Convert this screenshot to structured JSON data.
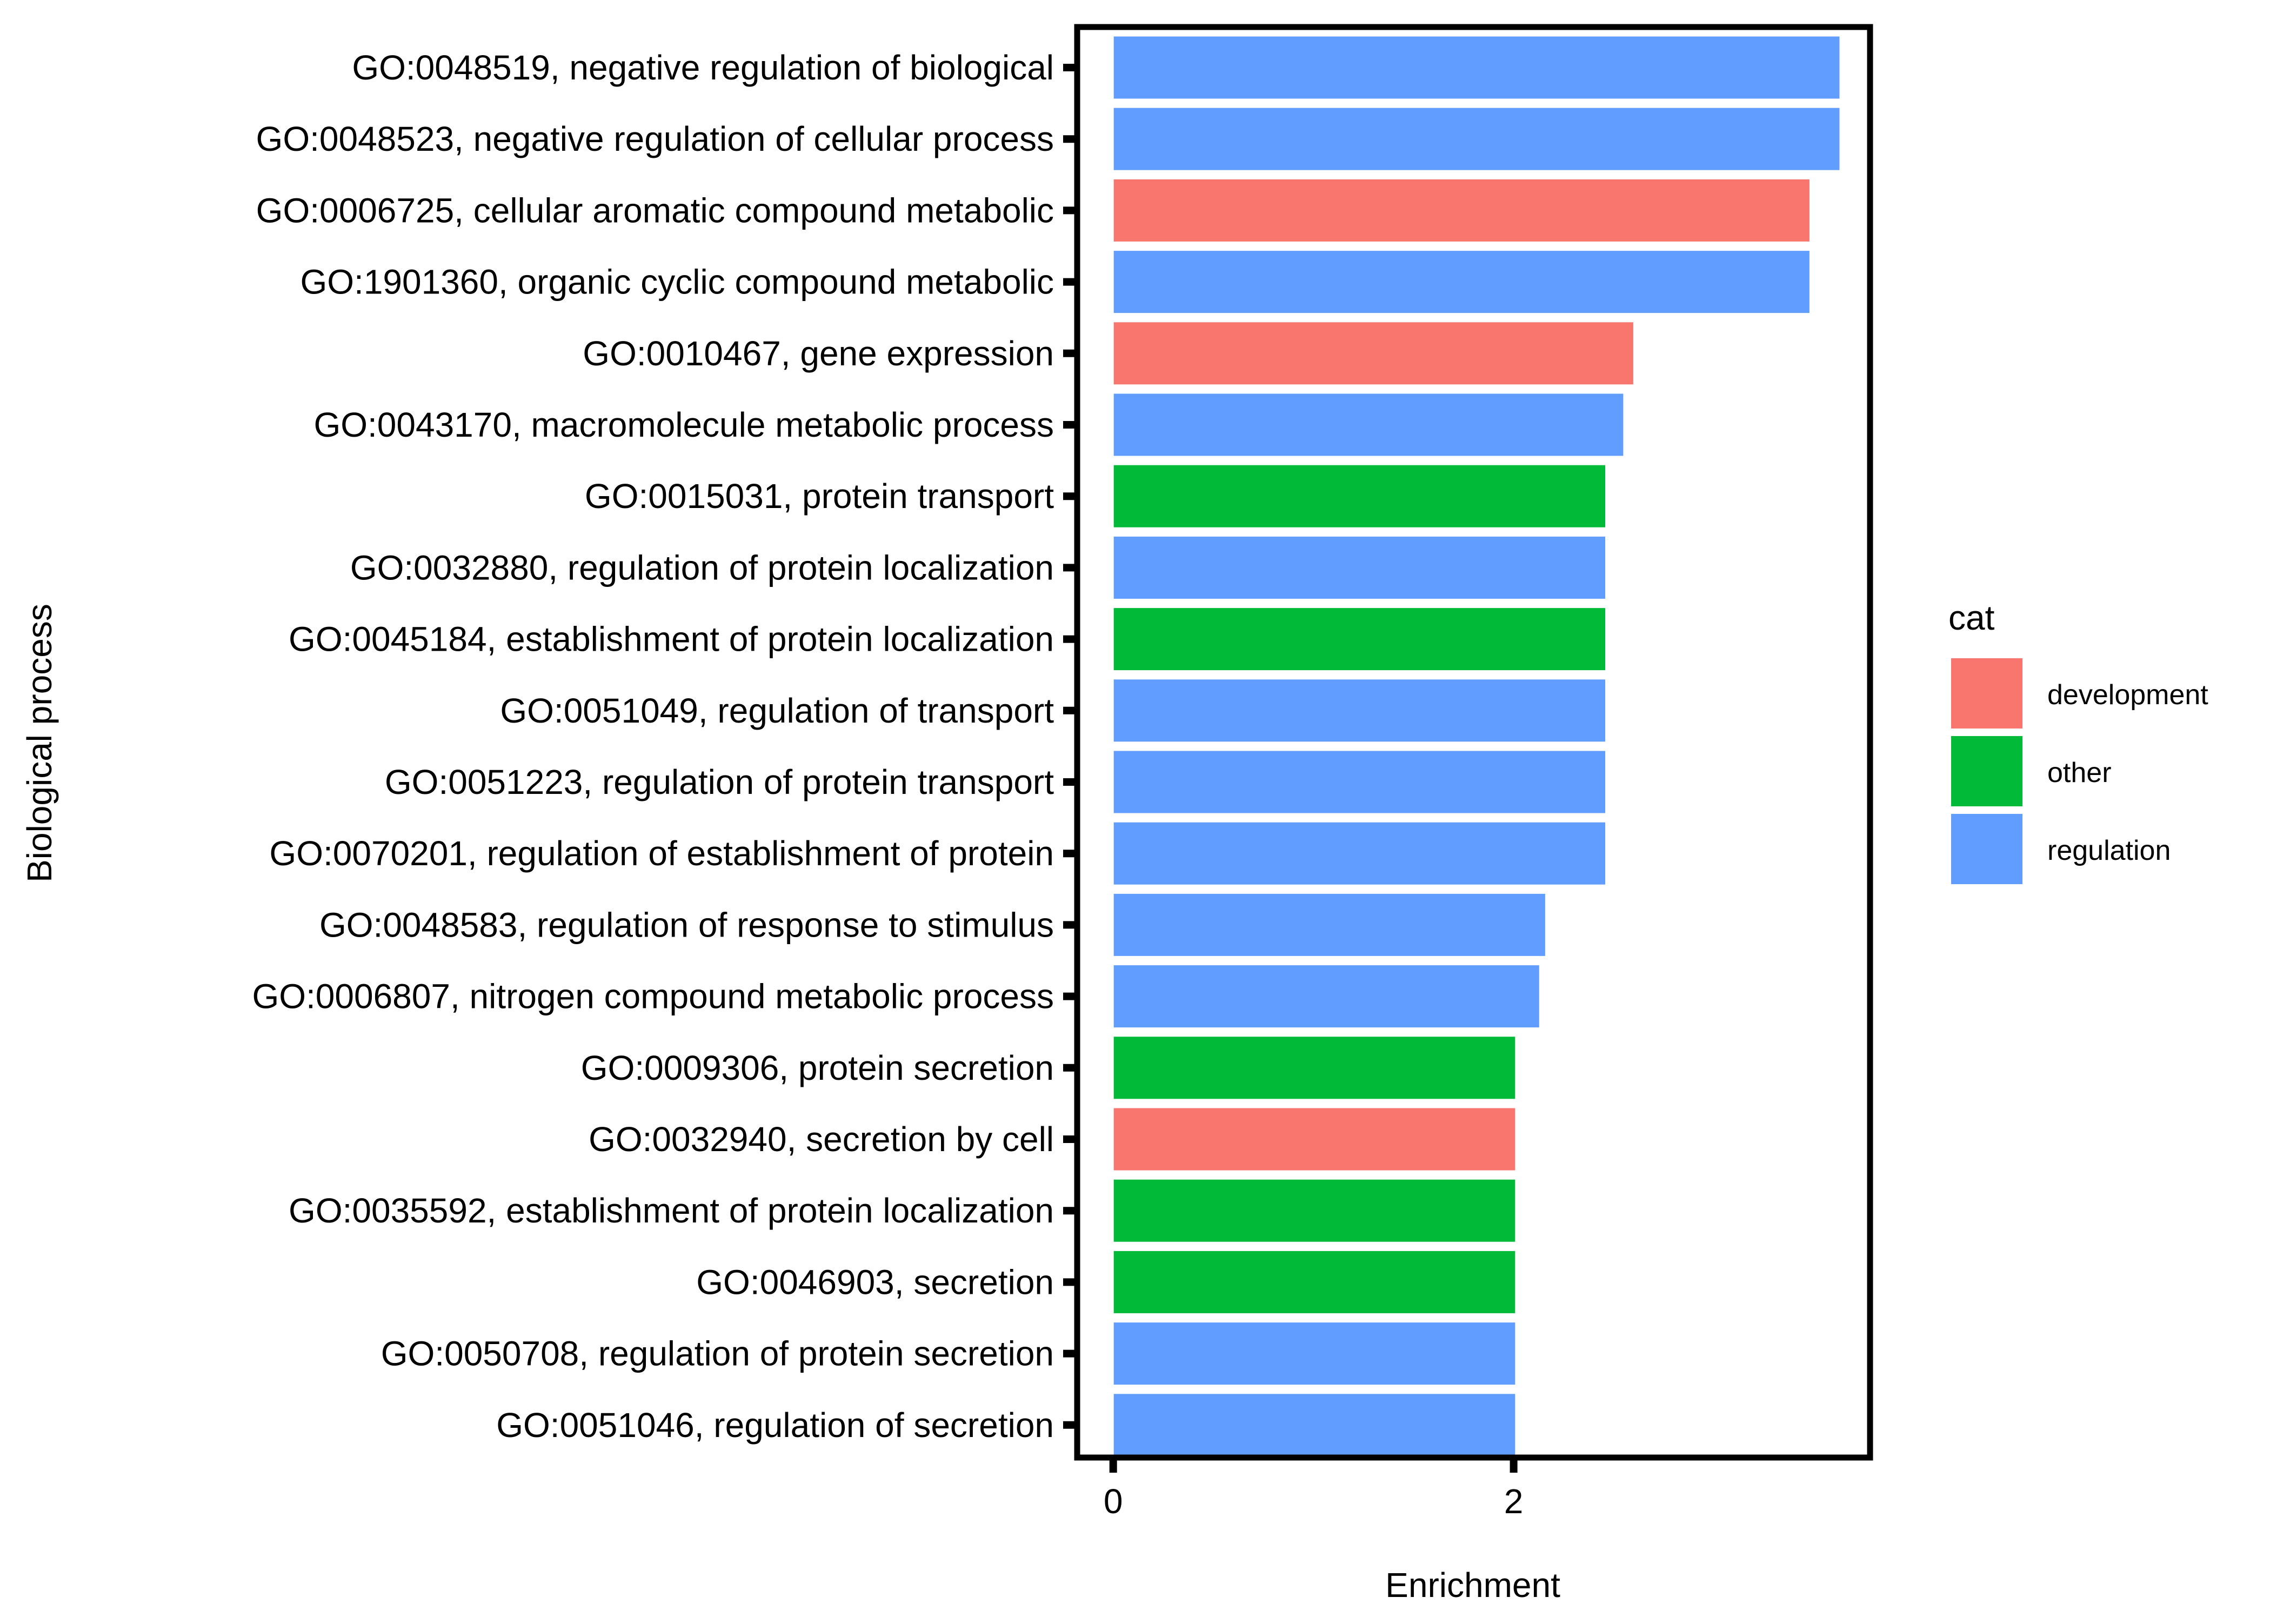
{
  "chart_data": {
    "type": "bar",
    "orientation": "horizontal",
    "xlabel": "Enrichment",
    "ylabel": "Biological process",
    "xlim": [
      -0.18,
      3.78
    ],
    "x_ticks": [
      0,
      2
    ],
    "x_tick_labels": [
      "0",
      "2"
    ],
    "grid": false,
    "legend": {
      "title": "cat",
      "position": "right",
      "entries": [
        {
          "label": "development",
          "color": "#F8766D"
        },
        {
          "label": "other",
          "color": "#00BA38"
        },
        {
          "label": "regulation",
          "color": "#619CFF"
        }
      ]
    },
    "categories": [
      "GO:0048519, negative regulation of biological",
      "GO:0048523, negative regulation of cellular process",
      "GO:0006725, cellular aromatic compound metabolic",
      "GO:1901360, organic cyclic compound metabolic",
      "GO:0010467, gene expression",
      "GO:0043170, macromolecule metabolic process",
      "GO:0015031, protein transport",
      "GO:0032880, regulation of protein localization",
      "GO:0045184, establishment of protein localization",
      "GO:0051049, regulation of transport",
      "GO:0051223, regulation of protein transport",
      "GO:0070201, regulation of establishment of protein",
      "GO:0048583, regulation of response to stimulus",
      "GO:0006807, nitrogen compound metabolic process",
      "GO:0009306, protein secretion",
      "GO:0032940, secretion by cell",
      "GO:0035592, establishment of protein localization",
      "GO:0046903, secretion",
      "GO:0050708, regulation of protein secretion",
      "GO:0051046, regulation of secretion"
    ],
    "values": [
      3.63,
      3.63,
      3.48,
      3.48,
      2.6,
      2.55,
      2.46,
      2.46,
      2.46,
      2.46,
      2.46,
      2.46,
      2.16,
      2.13,
      2.01,
      2.01,
      2.01,
      2.01,
      2.01,
      2.01
    ],
    "cat": [
      "regulation",
      "regulation",
      "development",
      "regulation",
      "development",
      "regulation",
      "other",
      "regulation",
      "other",
      "regulation",
      "regulation",
      "regulation",
      "regulation",
      "regulation",
      "other",
      "development",
      "other",
      "other",
      "regulation",
      "regulation"
    ]
  }
}
